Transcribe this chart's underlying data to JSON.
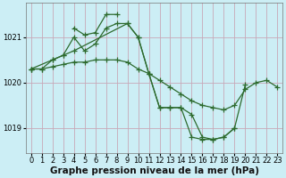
{
  "background_color": "#cceef5",
  "grid_color": "#c8a8b8",
  "line_color": "#2d6a2d",
  "marker": "+",
  "markersize": 4,
  "linewidth": 0.9,
  "xlabel": "Graphe pression niveau de la mer (hPa)",
  "xlabel_fontsize": 7.5,
  "tick_fontsize": 6,
  "ylim": [
    1018.45,
    1021.75
  ],
  "xlim": [
    -0.5,
    23.5
  ],
  "yticks": [
    1019,
    1020,
    1021
  ],
  "xticks": [
    0,
    1,
    2,
    3,
    4,
    5,
    6,
    7,
    8,
    9,
    10,
    11,
    12,
    13,
    14,
    15,
    16,
    17,
    18,
    19,
    20,
    21,
    22,
    23
  ],
  "series": [
    {
      "x": [
        0,
        1,
        2,
        3,
        4,
        5,
        6,
        7,
        8,
        9,
        10,
        11,
        12,
        13,
        14,
        15,
        16,
        17,
        18,
        19,
        20,
        21,
        22,
        23
      ],
      "y": [
        1020.3,
        1020.3,
        1020.35,
        1020.4,
        1020.45,
        1020.45,
        1020.5,
        1020.5,
        1020.5,
        1020.45,
        1020.3,
        1020.2,
        1020.05,
        1019.9,
        1019.75,
        1019.6,
        1019.5,
        1019.45,
        1019.4,
        1019.5,
        1019.85,
        1020.0,
        1020.05,
        1019.9
      ]
    },
    {
      "x": [
        0,
        1,
        2,
        3,
        4,
        5,
        6,
        7,
        8,
        9,
        10,
        11,
        12,
        13,
        14,
        15,
        16,
        17,
        18,
        19,
        20
      ],
      "y": [
        1020.3,
        1020.3,
        1020.5,
        1020.6,
        1021.0,
        1020.7,
        1020.85,
        1021.2,
        1021.3,
        1021.3,
        1021.0,
        1020.2,
        1019.45,
        1019.45,
        1019.45,
        1019.3,
        1018.8,
        1018.75,
        1018.8,
        1019.0,
        1019.95
      ]
    },
    {
      "x": [
        4,
        5,
        6,
        7,
        8
      ],
      "y": [
        1021.2,
        1021.05,
        1021.1,
        1021.5,
        1021.5
      ]
    },
    {
      "x": [
        0,
        2,
        3,
        4,
        9,
        10,
        11,
        12,
        13,
        14,
        15,
        16,
        17,
        18,
        19
      ],
      "y": [
        1020.3,
        1020.5,
        1020.6,
        1020.7,
        1021.3,
        1021.0,
        1020.2,
        1019.45,
        1019.45,
        1019.45,
        1018.8,
        1018.75,
        1018.75,
        1018.8,
        1019.0
      ]
    }
  ]
}
